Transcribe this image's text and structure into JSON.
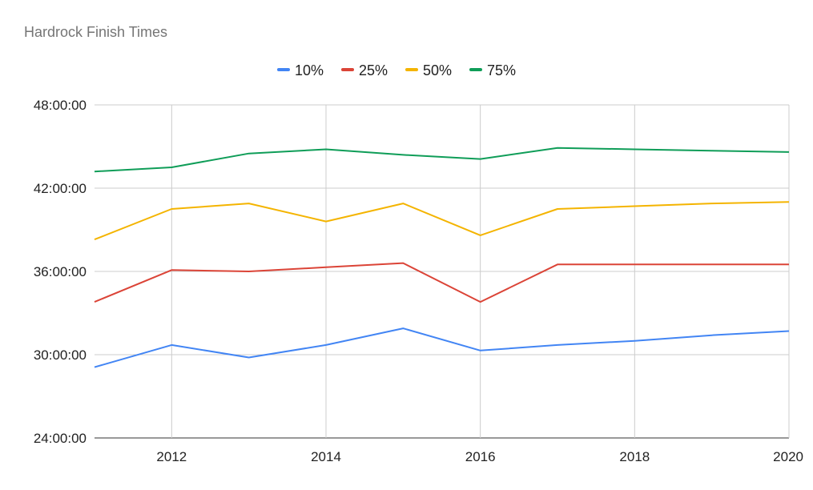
{
  "chart_data": {
    "type": "line",
    "title": "Hardrock Finish Times",
    "xlabel": "",
    "ylabel": "",
    "x": [
      2011,
      2012,
      2013,
      2014,
      2015,
      2016,
      2017,
      2018,
      2019,
      2020
    ],
    "xlim": [
      2011,
      2020
    ],
    "x_ticks": [
      2012,
      2014,
      2016,
      2018,
      2020
    ],
    "x_tick_labels": [
      "2012",
      "2014",
      "2016",
      "2018",
      "2020"
    ],
    "ylim_hours": [
      24,
      48
    ],
    "y_ticks_hours": [
      24,
      30,
      36,
      42,
      48
    ],
    "y_tick_labels": [
      "24:00:00",
      "30:00:00",
      "36:00:00",
      "42:00:00",
      "48:00:00"
    ],
    "grid": true,
    "legend_position": "top-center",
    "series": [
      {
        "name": "10%",
        "color": "#4285f4",
        "values_hours": [
          29.1,
          30.7,
          29.8,
          30.7,
          31.9,
          30.3,
          30.7,
          31.0,
          31.4,
          31.7
        ]
      },
      {
        "name": "25%",
        "color": "#db4437",
        "values_hours": [
          33.8,
          36.1,
          36.0,
          36.3,
          36.6,
          33.8,
          36.5,
          36.5,
          36.5,
          36.5
        ]
      },
      {
        "name": "50%",
        "color": "#f4b400",
        "values_hours": [
          38.3,
          40.5,
          40.9,
          39.6,
          40.9,
          38.6,
          40.5,
          40.7,
          40.9,
          41.0
        ]
      },
      {
        "name": "75%",
        "color": "#0f9d58",
        "values_hours": [
          43.2,
          43.5,
          44.5,
          44.8,
          44.4,
          44.1,
          44.9,
          44.8,
          44.7,
          44.6
        ]
      }
    ]
  }
}
